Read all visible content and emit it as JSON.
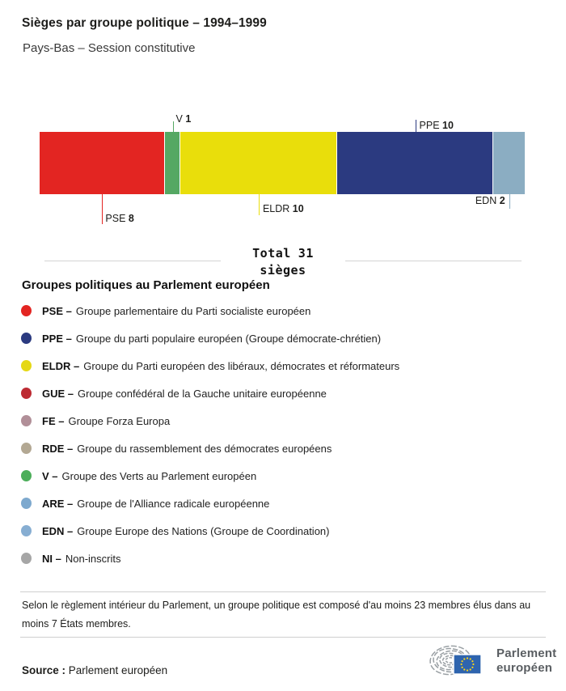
{
  "header": {
    "title": "Sièges par groupe politique – 1994–1999",
    "subtitle": "Pays-Bas – Session constitutive"
  },
  "chart_data": {
    "type": "bar",
    "variant": "horizontal-stacked",
    "title": "Sièges par groupe politique – 1994–1999",
    "subtitle": "Pays-Bas – Session constitutive",
    "total": 31,
    "total_label": {
      "prefix": "Total",
      "value": "31",
      "suffix": "sièges"
    },
    "legend_position": "below",
    "segments": [
      {
        "code": "PSE",
        "seats": 8,
        "color": "#e32522",
        "label_side": "below"
      },
      {
        "code": "V",
        "seats": 1,
        "color": "#55a863",
        "label_side": "above"
      },
      {
        "code": "ELDR",
        "seats": 10,
        "color": "#e9de0b",
        "label_side": "below"
      },
      {
        "code": "PPE",
        "seats": 10,
        "color": "#2b3a80",
        "label_side": "above"
      },
      {
        "code": "EDN",
        "seats": 2,
        "color": "#8badc2",
        "label_side": "below",
        "label_align": "right"
      }
    ]
  },
  "legend": {
    "heading": "Groupes politiques au Parlement européen",
    "separator": "–",
    "items": [
      {
        "code": "PSE",
        "color": "#e32522",
        "desc": "Groupe parlementaire du Parti socialiste européen"
      },
      {
        "code": "PPE",
        "color": "#2b3a80",
        "desc": "Groupe du parti populaire européen (Groupe démocrate-chrétien)"
      },
      {
        "code": "ELDR",
        "color": "#e5d816",
        "desc": "Groupe du Parti européen des libéraux, démocrates et réformateurs"
      },
      {
        "code": "GUE",
        "color": "#bd2b33",
        "desc": "Groupe confédéral de la Gauche unitaire européenne"
      },
      {
        "code": "FE",
        "color": "#b18f98",
        "desc": "Groupe Forza Europa"
      },
      {
        "code": "RDE",
        "color": "#b3a893",
        "desc": "Groupe du rassemblement des démocrates européens"
      },
      {
        "code": "V",
        "color": "#4cae5a",
        "desc": "Groupe des Verts au Parlement européen"
      },
      {
        "code": "ARE",
        "color": "#7ea9ce",
        "desc": "Groupe de l'Alliance radicale européenne"
      },
      {
        "code": "EDN",
        "color": "#87aed2",
        "desc": "Groupe Europe des Nations (Groupe de Coordination)"
      },
      {
        "code": "NI",
        "color": "#a6a6a6",
        "desc": "Non-inscrits"
      }
    ]
  },
  "footnote": "Selon le règlement intérieur du Parlement, un groupe politique est composé d'au moins 23 membres élus dans au moins 7 États membres.",
  "source": {
    "label": "Source :",
    "value": "Parlement européen"
  },
  "logo": {
    "line1": "Parlement",
    "line2": "européen"
  }
}
